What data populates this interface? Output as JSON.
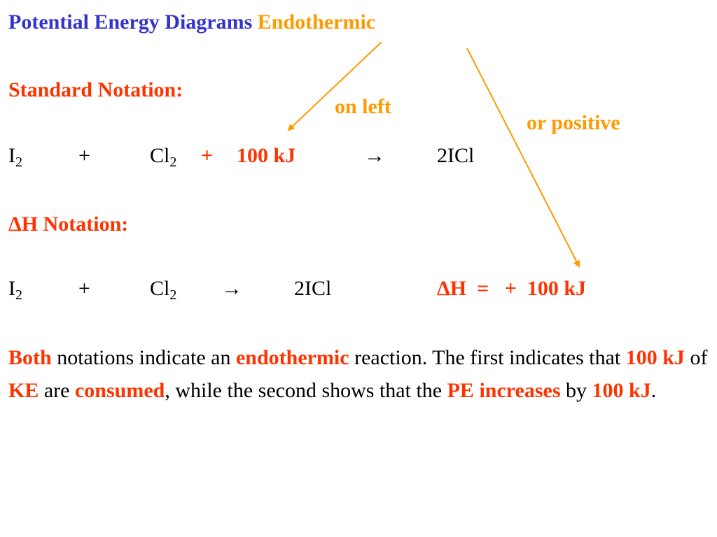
{
  "colors": {
    "blue": "#3333cc",
    "orange": "#ff9900",
    "red": "#ff3300",
    "black": "#000000"
  },
  "title": {
    "main": "Potential Energy Diagrams",
    "highlight": "Endothermic"
  },
  "annotations": {
    "left": "on left",
    "positive": "or positive"
  },
  "standard": {
    "heading": "Standard Notation:",
    "reactant1": "I",
    "reactant1_sub": "2",
    "plus": "+",
    "reactant2": "Cl",
    "reactant2_sub": "2",
    "energy_plus": "+",
    "energy": "100 kJ",
    "arrow": "→",
    "product": "2ICl"
  },
  "delta_h": {
    "heading": "ΔH Notation:",
    "reactant1": "I",
    "reactant1_sub": "2",
    "plus": "+",
    "reactant2": "Cl",
    "reactant2_sub": "2",
    "arrow": "→",
    "product": "2ICl",
    "dh_label": "ΔH  =   +  100 kJ"
  },
  "paragraph": {
    "p1": "Both",
    "p2": " notations indicate an ",
    "p3": "endothermic",
    "p4": " reaction. The first indicates that ",
    "p5": "100 kJ",
    "p6": " of ",
    "p7": "KE",
    "p8": " are ",
    "p9": "consumed",
    "p10": ", while the second shows that the ",
    "p11": "PE increases",
    "p12": " by ",
    "p13": "100 kJ",
    "p14": "."
  }
}
